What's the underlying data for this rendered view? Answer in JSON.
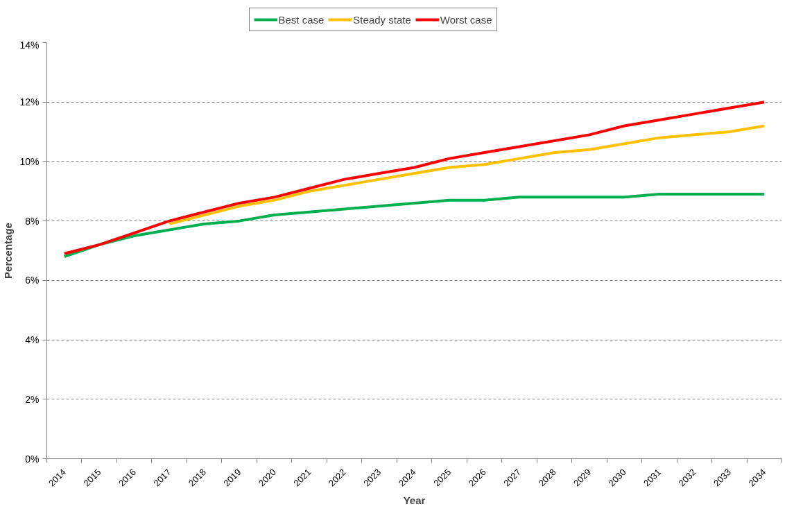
{
  "chart_data": {
    "type": "line",
    "xlabel": "Year",
    "ylabel": "Percentage",
    "categories": [
      "2014",
      "2015",
      "2016",
      "2017",
      "2018",
      "2019",
      "2020",
      "2021",
      "2022",
      "2023",
      "2024",
      "2025",
      "2026",
      "2027",
      "2028",
      "2029",
      "2030",
      "2031",
      "2032",
      "2033",
      "2034"
    ],
    "series": [
      {
        "name": "Best case",
        "color": "#00b050",
        "values": [
          6.8,
          7.2,
          7.5,
          7.7,
          7.9,
          8.0,
          8.2,
          8.3,
          8.4,
          8.5,
          8.6,
          8.7,
          8.7,
          8.8,
          8.8,
          8.8,
          8.8,
          8.9,
          8.9,
          8.9,
          8.9
        ]
      },
      {
        "name": "Steady state",
        "color": "#ffc000",
        "values": [
          null,
          null,
          null,
          7.9,
          8.2,
          8.5,
          8.7,
          9.0,
          9.2,
          9.4,
          9.6,
          9.8,
          9.9,
          10.1,
          10.3,
          10.4,
          10.6,
          10.8,
          10.9,
          11.0,
          11.2
        ]
      },
      {
        "name": "Worst case",
        "color": "#ff0000",
        "values": [
          6.9,
          7.2,
          7.6,
          8.0,
          8.3,
          8.6,
          8.8,
          9.1,
          9.4,
          9.6,
          9.8,
          10.1,
          10.3,
          10.5,
          10.7,
          10.9,
          11.2,
          11.4,
          11.6,
          11.8,
          12.0
        ]
      }
    ],
    "ylim": [
      0,
      14
    ],
    "yticks": [
      {
        "value": 0,
        "label": "0%"
      },
      {
        "value": 2,
        "label": "2%"
      },
      {
        "value": 4,
        "label": "4%"
      },
      {
        "value": 6,
        "label": "6%"
      },
      {
        "value": 8,
        "label": "8%"
      },
      {
        "value": 10,
        "label": "10%"
      },
      {
        "value": 12,
        "label": "12%"
      },
      {
        "value": 14,
        "label": "14%"
      }
    ],
    "grid": "y",
    "legend": "top",
    "marker": "none",
    "line_style": "solid"
  }
}
